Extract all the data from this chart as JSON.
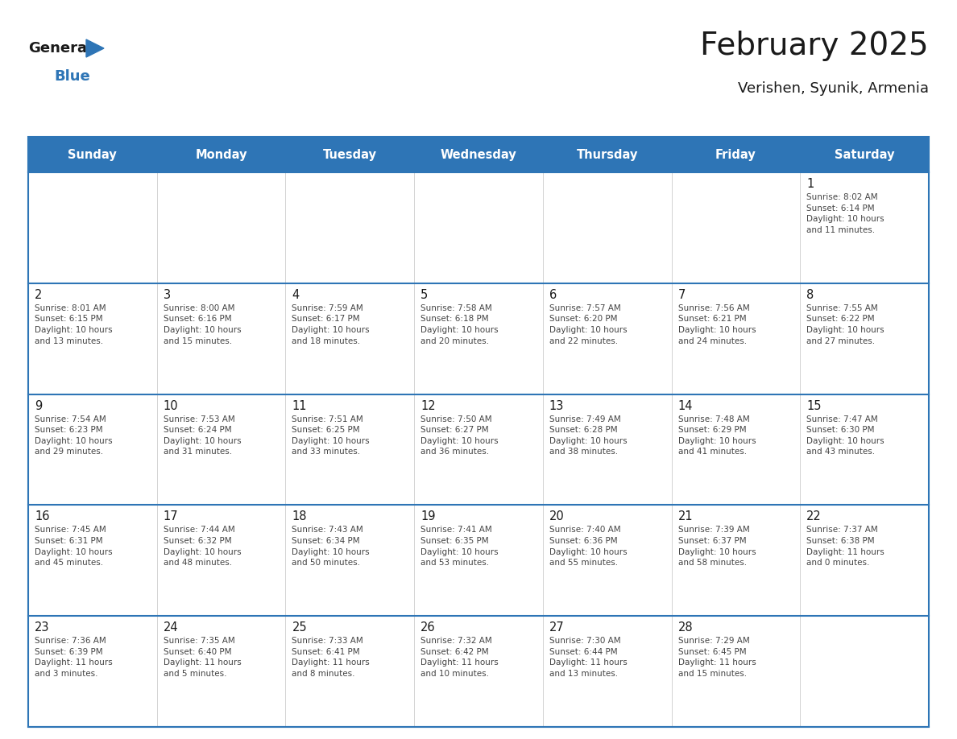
{
  "title": "February 2025",
  "subtitle": "Verishen, Syunik, Armenia",
  "header_bg_color": "#2E75B6",
  "header_text_color": "#FFFFFF",
  "cell_bg_color": "#FFFFFF",
  "border_color": "#2E75B6",
  "day_text_color": "#1a1a1a",
  "info_text_color": "#444444",
  "days_of_week": [
    "Sunday",
    "Monday",
    "Tuesday",
    "Wednesday",
    "Thursday",
    "Friday",
    "Saturday"
  ],
  "calendar_data": [
    [
      {
        "day": null,
        "info": null
      },
      {
        "day": null,
        "info": null
      },
      {
        "day": null,
        "info": null
      },
      {
        "day": null,
        "info": null
      },
      {
        "day": null,
        "info": null
      },
      {
        "day": null,
        "info": null
      },
      {
        "day": 1,
        "info": "Sunrise: 8:02 AM\nSunset: 6:14 PM\nDaylight: 10 hours\nand 11 minutes."
      }
    ],
    [
      {
        "day": 2,
        "info": "Sunrise: 8:01 AM\nSunset: 6:15 PM\nDaylight: 10 hours\nand 13 minutes."
      },
      {
        "day": 3,
        "info": "Sunrise: 8:00 AM\nSunset: 6:16 PM\nDaylight: 10 hours\nand 15 minutes."
      },
      {
        "day": 4,
        "info": "Sunrise: 7:59 AM\nSunset: 6:17 PM\nDaylight: 10 hours\nand 18 minutes."
      },
      {
        "day": 5,
        "info": "Sunrise: 7:58 AM\nSunset: 6:18 PM\nDaylight: 10 hours\nand 20 minutes."
      },
      {
        "day": 6,
        "info": "Sunrise: 7:57 AM\nSunset: 6:20 PM\nDaylight: 10 hours\nand 22 minutes."
      },
      {
        "day": 7,
        "info": "Sunrise: 7:56 AM\nSunset: 6:21 PM\nDaylight: 10 hours\nand 24 minutes."
      },
      {
        "day": 8,
        "info": "Sunrise: 7:55 AM\nSunset: 6:22 PM\nDaylight: 10 hours\nand 27 minutes."
      }
    ],
    [
      {
        "day": 9,
        "info": "Sunrise: 7:54 AM\nSunset: 6:23 PM\nDaylight: 10 hours\nand 29 minutes."
      },
      {
        "day": 10,
        "info": "Sunrise: 7:53 AM\nSunset: 6:24 PM\nDaylight: 10 hours\nand 31 minutes."
      },
      {
        "day": 11,
        "info": "Sunrise: 7:51 AM\nSunset: 6:25 PM\nDaylight: 10 hours\nand 33 minutes."
      },
      {
        "day": 12,
        "info": "Sunrise: 7:50 AM\nSunset: 6:27 PM\nDaylight: 10 hours\nand 36 minutes."
      },
      {
        "day": 13,
        "info": "Sunrise: 7:49 AM\nSunset: 6:28 PM\nDaylight: 10 hours\nand 38 minutes."
      },
      {
        "day": 14,
        "info": "Sunrise: 7:48 AM\nSunset: 6:29 PM\nDaylight: 10 hours\nand 41 minutes."
      },
      {
        "day": 15,
        "info": "Sunrise: 7:47 AM\nSunset: 6:30 PM\nDaylight: 10 hours\nand 43 minutes."
      }
    ],
    [
      {
        "day": 16,
        "info": "Sunrise: 7:45 AM\nSunset: 6:31 PM\nDaylight: 10 hours\nand 45 minutes."
      },
      {
        "day": 17,
        "info": "Sunrise: 7:44 AM\nSunset: 6:32 PM\nDaylight: 10 hours\nand 48 minutes."
      },
      {
        "day": 18,
        "info": "Sunrise: 7:43 AM\nSunset: 6:34 PM\nDaylight: 10 hours\nand 50 minutes."
      },
      {
        "day": 19,
        "info": "Sunrise: 7:41 AM\nSunset: 6:35 PM\nDaylight: 10 hours\nand 53 minutes."
      },
      {
        "day": 20,
        "info": "Sunrise: 7:40 AM\nSunset: 6:36 PM\nDaylight: 10 hours\nand 55 minutes."
      },
      {
        "day": 21,
        "info": "Sunrise: 7:39 AM\nSunset: 6:37 PM\nDaylight: 10 hours\nand 58 minutes."
      },
      {
        "day": 22,
        "info": "Sunrise: 7:37 AM\nSunset: 6:38 PM\nDaylight: 11 hours\nand 0 minutes."
      }
    ],
    [
      {
        "day": 23,
        "info": "Sunrise: 7:36 AM\nSunset: 6:39 PM\nDaylight: 11 hours\nand 3 minutes."
      },
      {
        "day": 24,
        "info": "Sunrise: 7:35 AM\nSunset: 6:40 PM\nDaylight: 11 hours\nand 5 minutes."
      },
      {
        "day": 25,
        "info": "Sunrise: 7:33 AM\nSunset: 6:41 PM\nDaylight: 11 hours\nand 8 minutes."
      },
      {
        "day": 26,
        "info": "Sunrise: 7:32 AM\nSunset: 6:42 PM\nDaylight: 11 hours\nand 10 minutes."
      },
      {
        "day": 27,
        "info": "Sunrise: 7:30 AM\nSunset: 6:44 PM\nDaylight: 11 hours\nand 13 minutes."
      },
      {
        "day": 28,
        "info": "Sunrise: 7:29 AM\nSunset: 6:45 PM\nDaylight: 11 hours\nand 15 minutes."
      },
      {
        "day": null,
        "info": null
      }
    ]
  ],
  "logo_general_color": "#1a1a1a",
  "logo_blue_color": "#2E75B6",
  "fig_width": 11.88,
  "fig_height": 9.18
}
